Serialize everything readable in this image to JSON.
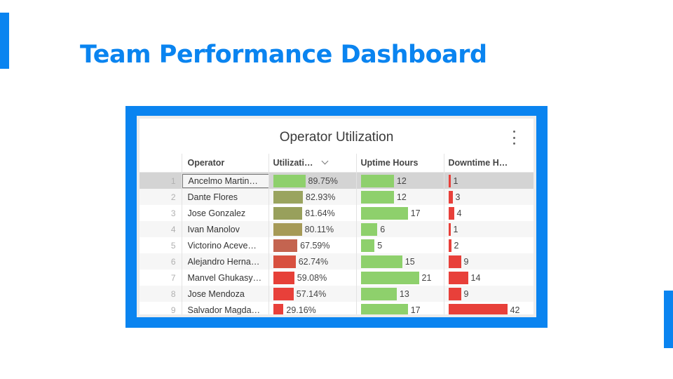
{
  "slide": {
    "title": "Team Performance Dashboard"
  },
  "card": {
    "title": "Operator Utilization",
    "columns": {
      "operator": "Operator",
      "utilization": "Utilizati…",
      "uptime": "Uptime Hours",
      "downtime": "Downtime H…"
    },
    "rows": [
      {
        "index": "1",
        "operator": "Ancelmo Martin…",
        "utilization": 89.75,
        "utilization_label": "89.75%",
        "uptime": 12,
        "uptime_label": "12",
        "downtime": 1,
        "downtime_label": "1",
        "util_color": "#8ed06c"
      },
      {
        "index": "2",
        "operator": "Dante Flores",
        "utilization": 82.93,
        "utilization_label": "82.93%",
        "uptime": 12,
        "uptime_label": "12",
        "downtime": 3,
        "downtime_label": "3",
        "util_color": "#9aa45f"
      },
      {
        "index": "3",
        "operator": "Jose Gonzalez",
        "utilization": 81.64,
        "utilization_label": "81.64%",
        "uptime": 17,
        "uptime_label": "17",
        "downtime": 4,
        "downtime_label": "4",
        "util_color": "#98a05c"
      },
      {
        "index": "4",
        "operator": "Ivan Manolov",
        "utilization": 80.11,
        "utilization_label": "80.11%",
        "uptime": 6,
        "uptime_label": "6",
        "downtime": 1,
        "downtime_label": "1",
        "util_color": "#a69a57"
      },
      {
        "index": "5",
        "operator": "Victorino Aceve…",
        "utilization": 67.59,
        "utilization_label": "67.59%",
        "uptime": 5,
        "uptime_label": "5",
        "downtime": 2,
        "downtime_label": "2",
        "util_color": "#c46450"
      },
      {
        "index": "6",
        "operator": "Alejandro Herna…",
        "utilization": 62.74,
        "utilization_label": "62.74%",
        "uptime": 15,
        "uptime_label": "15",
        "downtime": 9,
        "downtime_label": "9",
        "util_color": "#d8503f"
      },
      {
        "index": "7",
        "operator": "Manvel Ghukasy…",
        "utilization": 59.08,
        "utilization_label": "59.08%",
        "uptime": 21,
        "uptime_label": "21",
        "downtime": 14,
        "downtime_label": "14",
        "util_color": "#e64038"
      },
      {
        "index": "8",
        "operator": "Jose Mendoza",
        "utilization": 57.14,
        "utilization_label": "57.14%",
        "uptime": 13,
        "uptime_label": "13",
        "downtime": 9,
        "downtime_label": "9",
        "util_color": "#e8403a"
      },
      {
        "index": "9",
        "operator": "Salvador Magda…",
        "utilization": 29.16,
        "utilization_label": "29.16%",
        "uptime": 17,
        "uptime_label": "17",
        "downtime": 42,
        "downtime_label": "42",
        "util_color": "#e8403a"
      }
    ],
    "uptime_color": "#8ed06c",
    "downtime_color": "#e8403a",
    "selected_row": 0
  },
  "colors": {
    "accent": "#0a84f0"
  }
}
